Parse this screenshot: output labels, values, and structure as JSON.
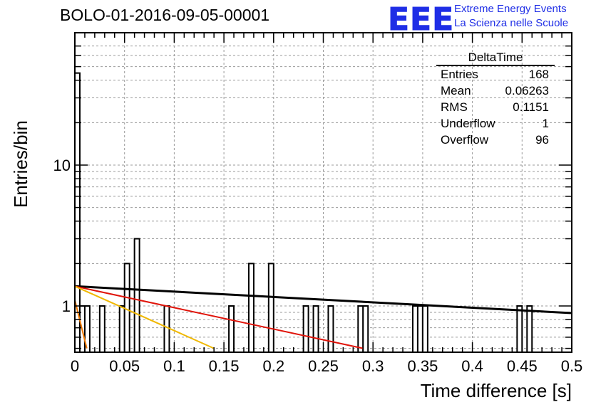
{
  "header": {
    "run_title": "BOLO-01-2016-09-05-00001",
    "logo_text": "EEE",
    "logo_line1": "Extreme Energy Events",
    "logo_line2": "La Scienza nelle Scuole"
  },
  "stats_box": {
    "name": "DeltaTime",
    "rows": [
      {
        "label": "Entries",
        "value": "168"
      },
      {
        "label": "Mean",
        "value": "0.06263"
      },
      {
        "label": "RMS",
        "value": "0.1151"
      },
      {
        "label": "Underflow",
        "value": "1"
      },
      {
        "label": "Overflow",
        "value": "96"
      }
    ]
  },
  "colors": {
    "histogram": "#000000",
    "grid": "#9a9a9a",
    "fit_black": "#000000",
    "fit_red": "#e0140a",
    "fit_orange": "#f0b800",
    "fit_dark_orange": "#f07800",
    "logo": "#1f2ee6"
  },
  "chart_data": {
    "type": "bar",
    "title": "BOLO-01-2016-09-05-00001",
    "xlabel": "Time difference [s]",
    "ylabel": "Entries/bin",
    "xlim": [
      0,
      0.5
    ],
    "ylim": [
      0.5,
      80
    ],
    "ylog": true,
    "grid": true,
    "x_ticks": [
      "0",
      "0.05",
      "0.1",
      "0.15",
      "0.2",
      "0.25",
      "0.3",
      "0.35",
      "0.4",
      "0.45",
      "0.5"
    ],
    "y_ticks": [
      "1",
      "10"
    ],
    "bin_width": 0.005,
    "bins": [
      {
        "x": 0.0,
        "y": 45
      },
      {
        "x": 0.005,
        "y": 1
      },
      {
        "x": 0.01,
        "y": 1
      },
      {
        "x": 0.025,
        "y": 1
      },
      {
        "x": 0.045,
        "y": 1
      },
      {
        "x": 0.05,
        "y": 2
      },
      {
        "x": 0.06,
        "y": 3
      },
      {
        "x": 0.09,
        "y": 1
      },
      {
        "x": 0.155,
        "y": 1
      },
      {
        "x": 0.175,
        "y": 2
      },
      {
        "x": 0.195,
        "y": 2
      },
      {
        "x": 0.23,
        "y": 1
      },
      {
        "x": 0.24,
        "y": 1
      },
      {
        "x": 0.255,
        "y": 1
      },
      {
        "x": 0.285,
        "y": 1
      },
      {
        "x": 0.29,
        "y": 1
      },
      {
        "x": 0.34,
        "y": 1
      },
      {
        "x": 0.345,
        "y": 1
      },
      {
        "x": 0.35,
        "y": 1
      },
      {
        "x": 0.445,
        "y": 1
      },
      {
        "x": 0.455,
        "y": 1
      }
    ],
    "fits": [
      {
        "color": "black",
        "points": [
          [
            0,
            1.38
          ],
          [
            0.5,
            0.89
          ]
        ]
      },
      {
        "color": "red",
        "points": [
          [
            0,
            1.38
          ],
          [
            0.29,
            0.5
          ]
        ]
      },
      {
        "color": "orange",
        "points": [
          [
            0,
            1.38
          ],
          [
            0.14,
            0.5
          ]
        ]
      },
      {
        "color": "dark-orange",
        "points": [
          [
            0,
            1.1
          ],
          [
            0.012,
            0.5
          ]
        ]
      }
    ]
  }
}
